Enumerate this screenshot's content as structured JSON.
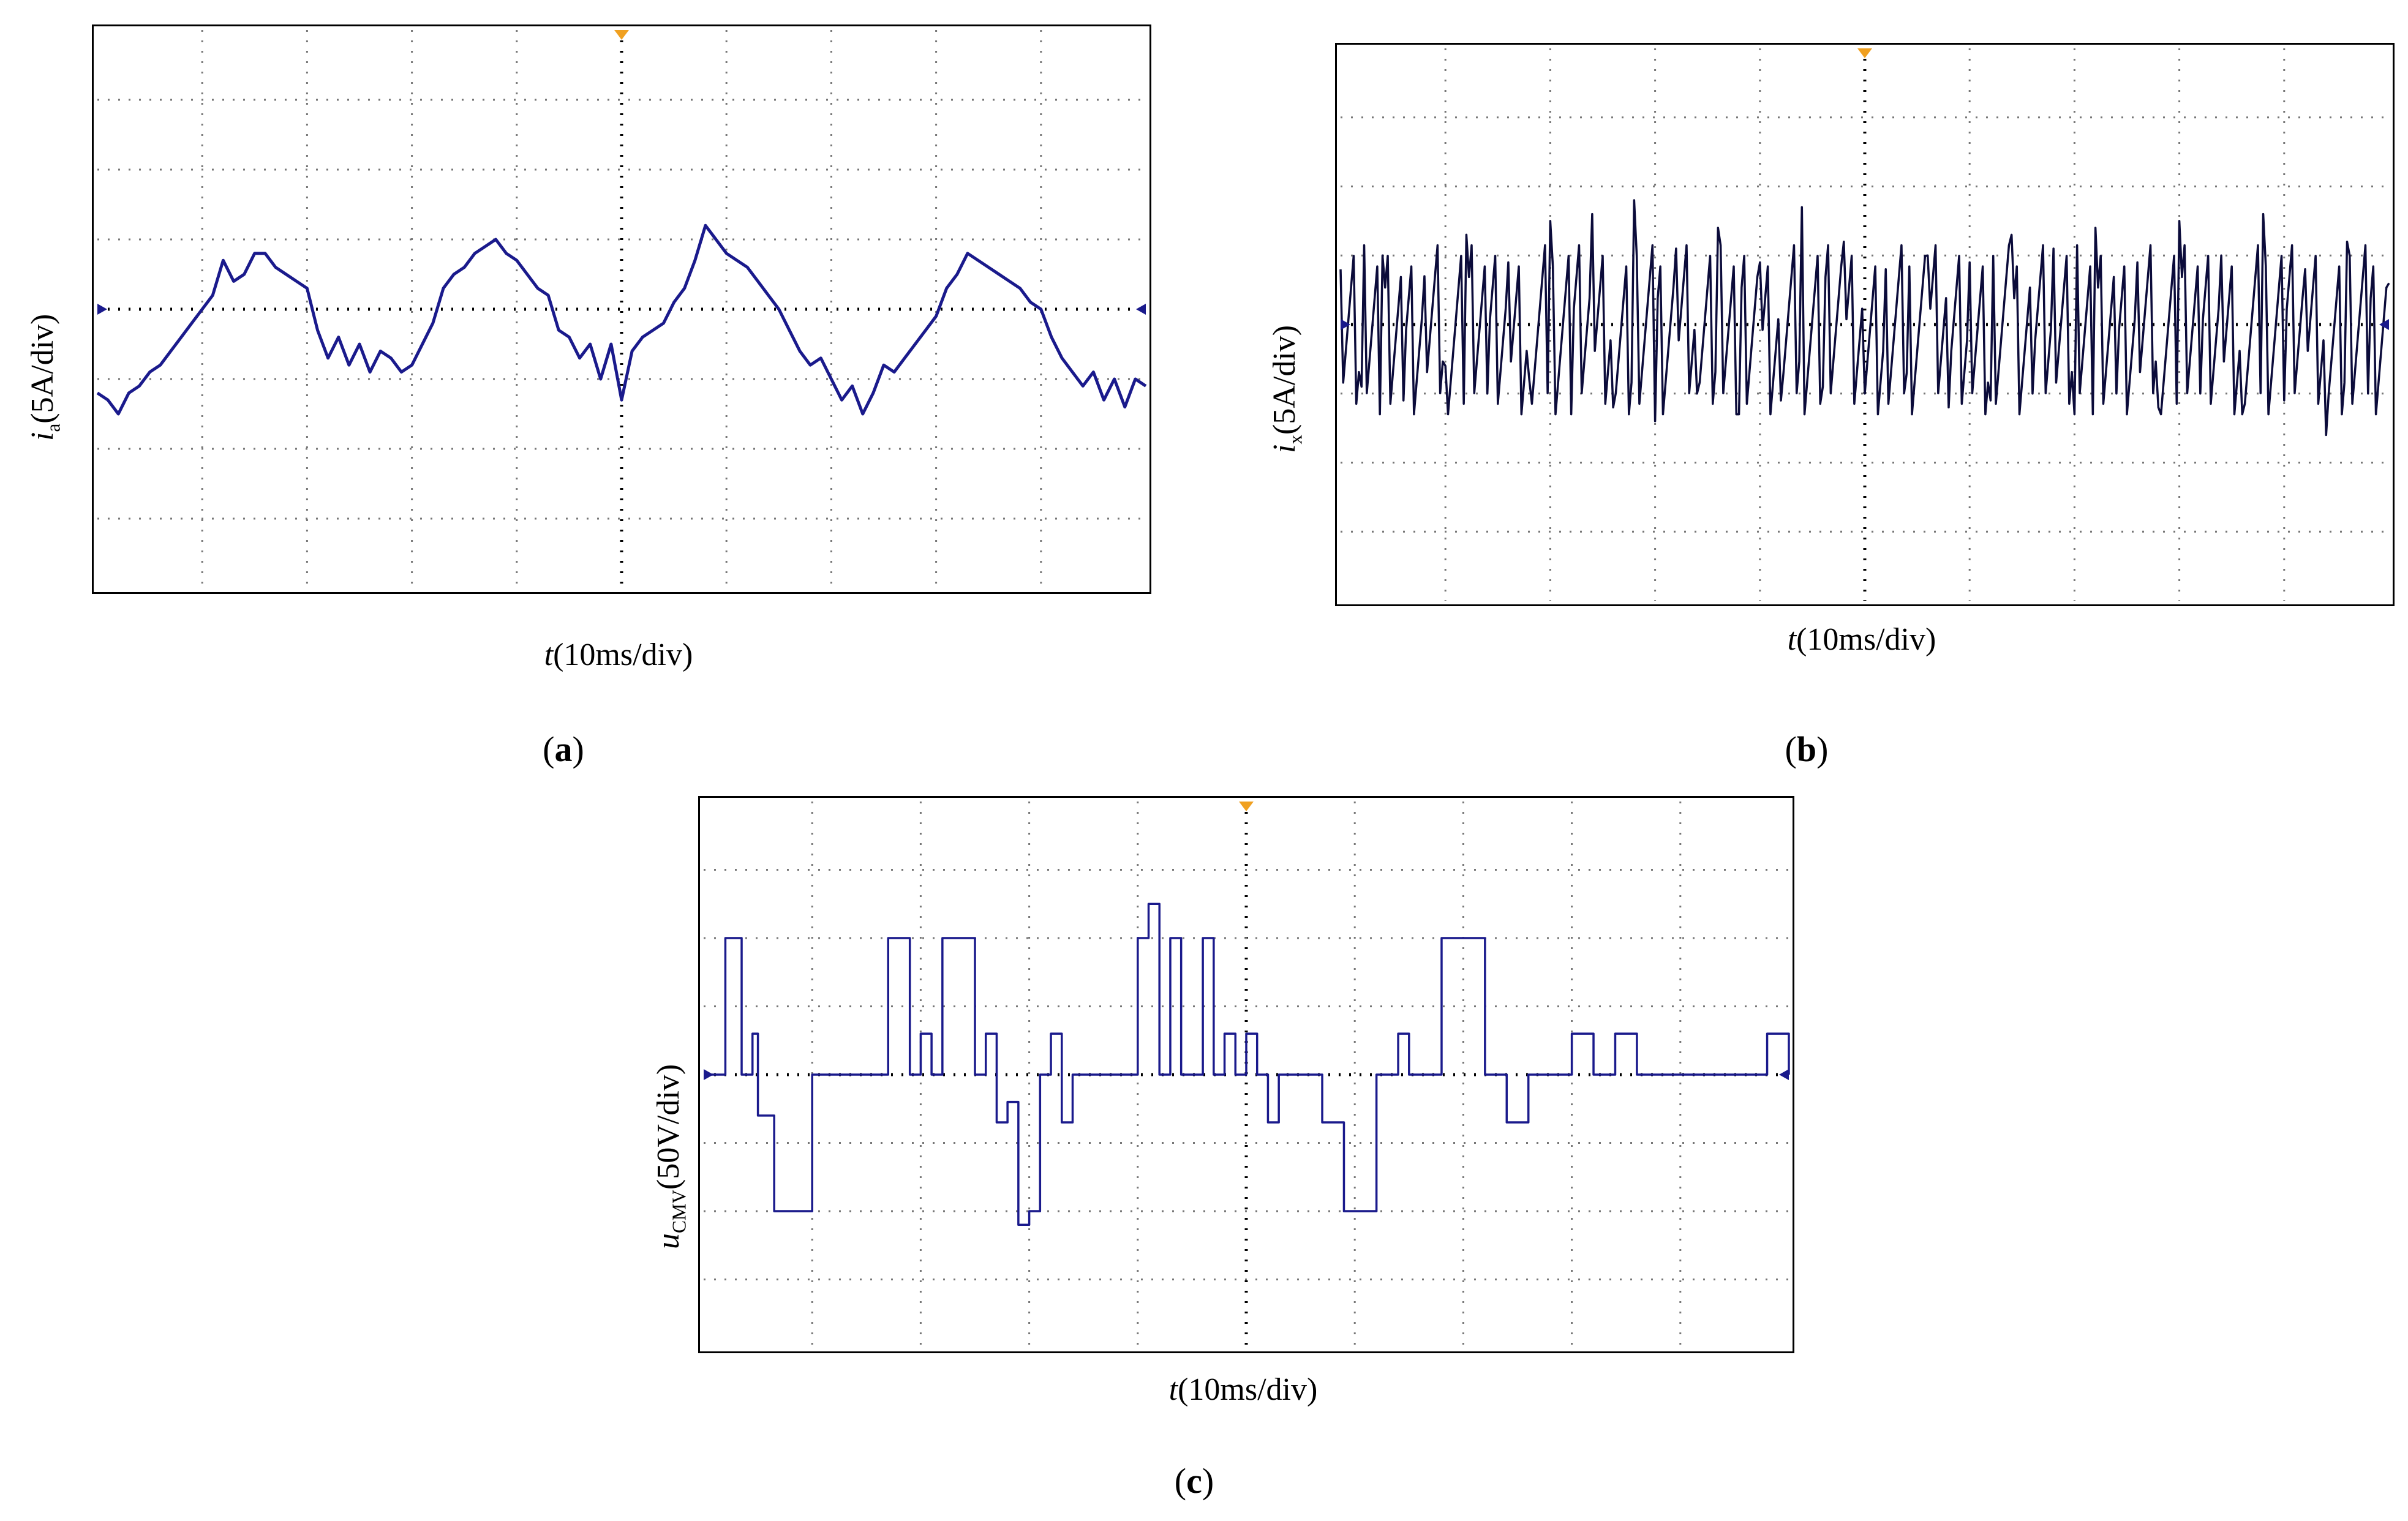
{
  "colors": {
    "trace": "#1a1a8c",
    "trace_dark": "#0b0b3a",
    "marker": "#f0a020",
    "grid": "#777777"
  },
  "chart_data": [
    {
      "type": "line",
      "panel": "(a)",
      "caption_letter": "a",
      "ylabel_var": "i",
      "ylabel_sub": "a",
      "ylabel_unit": "(5A/div)",
      "xlabel_var": "t",
      "xlabel_unit": "(10ms/div)",
      "grid": true,
      "divisions_x": 10,
      "divisions_y": 8,
      "ylim": [
        -4,
        4
      ],
      "xlim": [
        0,
        10
      ],
      "series": [
        {
          "x": [
            0,
            0.1,
            0.2,
            0.3,
            0.4,
            0.5,
            0.6,
            0.7,
            0.8,
            0.9,
            1.0,
            1.1,
            1.2,
            1.3,
            1.4,
            1.5,
            1.6,
            1.7,
            1.8,
            1.9,
            2.0,
            2.1,
            2.2,
            2.3,
            2.4,
            2.5,
            2.6,
            2.7,
            2.8,
            2.9,
            3.0,
            3.1,
            3.2,
            3.3,
            3.4,
            3.5,
            3.6,
            3.7,
            3.8,
            3.9,
            4.0,
            4.1,
            4.2,
            4.3,
            4.4,
            4.5,
            4.6,
            4.7,
            4.8,
            4.9,
            5.0,
            5.1,
            5.2,
            5.3,
            5.4,
            5.5,
            5.6,
            5.7,
            5.8,
            5.9,
            6.0,
            6.1,
            6.2,
            6.3,
            6.4,
            6.5,
            6.6,
            6.7,
            6.8,
            6.9,
            7.0,
            7.1,
            7.2,
            7.3,
            7.4,
            7.5,
            7.6,
            7.7,
            7.8,
            7.9,
            8.0,
            8.1,
            8.2,
            8.3,
            8.4,
            8.5,
            8.6,
            8.7,
            8.8,
            8.9,
            9.0,
            9.1,
            9.2,
            9.3,
            9.4,
            9.5,
            9.6,
            9.7,
            9.8,
            9.9,
            10.0
          ],
          "y": [
            -1.2,
            -1.3,
            -1.5,
            -1.2,
            -1.1,
            -0.9,
            -0.8,
            -0.6,
            -0.4,
            -0.2,
            0.0,
            0.2,
            0.7,
            0.4,
            0.5,
            0.8,
            0.8,
            0.6,
            0.5,
            0.4,
            0.3,
            -0.3,
            -0.7,
            -0.4,
            -0.8,
            -0.5,
            -0.9,
            -0.6,
            -0.7,
            -0.9,
            -0.8,
            -0.5,
            -0.2,
            0.3,
            0.5,
            0.6,
            0.8,
            0.9,
            1.0,
            0.8,
            0.7,
            0.5,
            0.3,
            0.2,
            -0.3,
            -0.4,
            -0.7,
            -0.5,
            -1.0,
            -0.5,
            -1.3,
            -0.6,
            -0.4,
            -0.3,
            -0.2,
            0.1,
            0.3,
            0.7,
            1.2,
            1.0,
            0.8,
            0.7,
            0.6,
            0.4,
            0.2,
            0.0,
            -0.3,
            -0.6,
            -0.8,
            -0.7,
            -1.0,
            -1.3,
            -1.1,
            -1.5,
            -1.2,
            -0.8,
            -0.9,
            -0.7,
            -0.5,
            -0.3,
            -0.1,
            0.3,
            0.5,
            0.8,
            0.7,
            0.6,
            0.5,
            0.4,
            0.3,
            0.1,
            0.0,
            -0.4,
            -0.7,
            -0.9,
            -1.1,
            -0.9,
            -1.3,
            -1.0,
            -1.4,
            -1.0,
            -1.1
          ]
        }
      ]
    },
    {
      "type": "line",
      "panel": "(b)",
      "caption_letter": "b",
      "ylabel_var": "i",
      "ylabel_sub": "x",
      "ylabel_unit": "(5A/div)",
      "xlabel_var": "t",
      "xlabel_unit": "(10ms/div)",
      "grid": true,
      "divisions_x": 10,
      "divisions_y": 8,
      "ylim": [
        -4,
        4
      ],
      "xlim": [
        0,
        10
      ],
      "series": [
        {
          "x": [
            0,
            0.2,
            0.4,
            0.6,
            0.8,
            1.0,
            1.2,
            1.4,
            1.6,
            1.8,
            2.0,
            2.2,
            2.4,
            2.6,
            2.8,
            3.0,
            3.2,
            3.4,
            3.6,
            3.8,
            4.0,
            4.2,
            4.4,
            4.6,
            4.8,
            5.0,
            5.2,
            5.4,
            5.6,
            5.8,
            6.0,
            6.2,
            6.4,
            6.6,
            6.8,
            7.0,
            7.2,
            7.4,
            7.6,
            7.8,
            8.0,
            8.2,
            8.4,
            8.6,
            8.8,
            9.0,
            9.2,
            9.4,
            9.6,
            9.8,
            10.0
          ],
          "y": [
            0.8,
            -0.9,
            1.0,
            -1.1,
            0.7,
            -0.6,
            1.3,
            -1.0,
            0.9,
            -0.8,
            1.5,
            -1.3,
            1.6,
            -1.2,
            1.8,
            -1.4,
            1.1,
            -1.0,
            1.4,
            -1.3,
            0.9,
            -1.1,
            1.7,
            -0.9,
            1.2,
            -1.0,
            0.8,
            -0.7,
            1.0,
            -1.2,
            0.9,
            -1.1,
            1.3,
            -1.0,
            1.1,
            -1.3,
            1.4,
            -1.0,
            0.9,
            -1.2,
            1.5,
            -1.0,
            1.0,
            -1.3,
            1.6,
            -1.1,
            0.8,
            -1.6,
            1.2,
            -1.0,
            0.6
          ]
        }
      ]
    },
    {
      "type": "line",
      "panel": "(c)",
      "caption_letter": "c",
      "ylabel_var": "u",
      "ylabel_sub": "CMV",
      "ylabel_unit": "(50V/div)",
      "xlabel_var": "t",
      "xlabel_unit": "(10ms/div)",
      "grid": true,
      "divisions_x": 10,
      "divisions_y": 8,
      "ylim": [
        -4,
        4
      ],
      "xlim": [
        0,
        10
      ],
      "series": [
        {
          "x": [
            0,
            0.15,
            0.2,
            0.3,
            0.35,
            0.45,
            0.5,
            0.6,
            0.65,
            0.9,
            1.0,
            1.1,
            1.15,
            1.3,
            1.35,
            1.6,
            1.7,
            1.8,
            1.9,
            2.0,
            2.1,
            2.2,
            2.3,
            2.5,
            2.6,
            2.7,
            2.8,
            2.9,
            3.0,
            3.1,
            3.2,
            3.3,
            3.4,
            3.5,
            3.6,
            3.9,
            4.0,
            4.1,
            4.2,
            4.3,
            4.4,
            4.6,
            4.7,
            4.8,
            4.9,
            5.0,
            5.1,
            5.2,
            5.3,
            5.5,
            5.6,
            5.7,
            5.9,
            6.0,
            6.2,
            6.4,
            6.5,
            6.7,
            6.8,
            7.1,
            7.2,
            7.4,
            7.6,
            7.8,
            8.0,
            8.2,
            8.4,
            8.6,
            8.8,
            9.0,
            9.2,
            9.4,
            9.6,
            9.8,
            10.0
          ],
          "y": [
            0,
            0,
            2,
            2,
            0,
            0.6,
            -0.6,
            -0.6,
            -2,
            -2,
            0,
            0,
            0,
            0,
            0,
            0,
            2,
            2,
            0,
            0.6,
            0,
            2,
            2,
            0,
            0.6,
            -0.7,
            -0.4,
            -2.2,
            -2,
            0,
            0.6,
            -0.7,
            0,
            0,
            0,
            0,
            2,
            2.5,
            0,
            2,
            0,
            2,
            0,
            0.6,
            0,
            0.6,
            0,
            -0.7,
            0,
            0,
            0,
            -0.7,
            -2,
            -2,
            0,
            0.6,
            0,
            0,
            2,
            2,
            0,
            -0.7,
            0,
            0,
            0.6,
            0,
            0.6,
            0,
            0,
            0,
            0,
            0,
            0,
            0.6,
            0
          ]
        }
      ]
    }
  ]
}
